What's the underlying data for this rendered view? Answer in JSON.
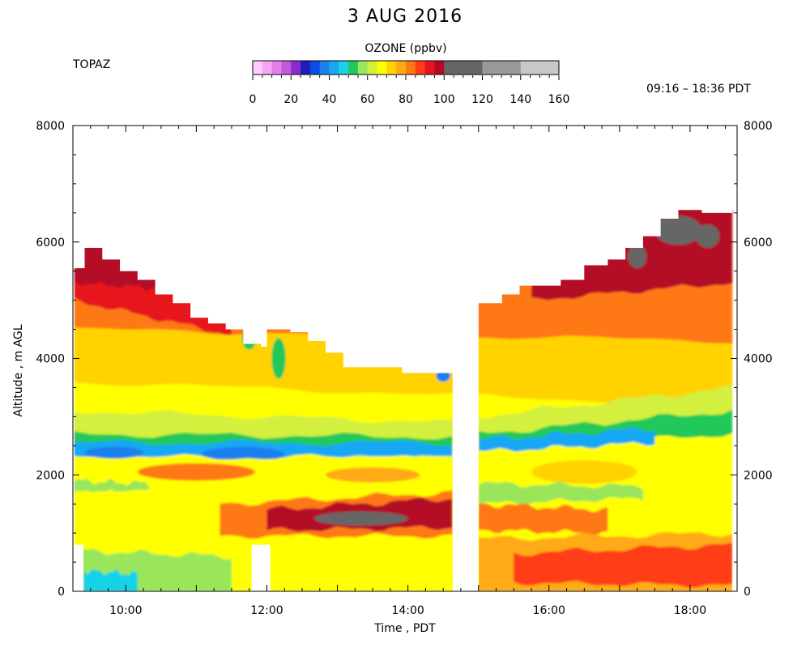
{
  "header": {
    "title": "3 AUG 2016",
    "station": "TOPAZ",
    "time_range": "09:16 – 18:36 PDT"
  },
  "colorbar": {
    "title": "OZONE (ppbv)",
    "tick_labels": [
      "0",
      "20",
      "40",
      "60",
      "80",
      "100",
      "120",
      "140",
      "160"
    ],
    "bins": [
      {
        "min": 0,
        "max": 5,
        "color": "#ffccff"
      },
      {
        "min": 5,
        "max": 10,
        "color": "#f5a6f5"
      },
      {
        "min": 10,
        "max": 15,
        "color": "#e27ee8"
      },
      {
        "min": 15,
        "max": 20,
        "color": "#c25ad8"
      },
      {
        "min": 20,
        "max": 25,
        "color": "#8a2bd2"
      },
      {
        "min": 25,
        "max": 30,
        "color": "#1f1fb8"
      },
      {
        "min": 30,
        "max": 35,
        "color": "#0a4ce6"
      },
      {
        "min": 35,
        "max": 40,
        "color": "#1c7ff0"
      },
      {
        "min": 40,
        "max": 45,
        "color": "#14a8f5"
      },
      {
        "min": 45,
        "max": 50,
        "color": "#18d2e6"
      },
      {
        "min": 50,
        "max": 55,
        "color": "#22c85a"
      },
      {
        "min": 55,
        "max": 60,
        "color": "#9ae65a"
      },
      {
        "min": 60,
        "max": 65,
        "color": "#d2f03c"
      },
      {
        "min": 65,
        "max": 70,
        "color": "#ffff00"
      },
      {
        "min": 70,
        "max": 75,
        "color": "#ffd200"
      },
      {
        "min": 75,
        "max": 80,
        "color": "#ffaa14"
      },
      {
        "min": 80,
        "max": 85,
        "color": "#ff7814"
      },
      {
        "min": 85,
        "max": 90,
        "color": "#ff3c14"
      },
      {
        "min": 90,
        "max": 95,
        "color": "#e6141e"
      },
      {
        "min": 95,
        "max": 100,
        "color": "#b40a28"
      },
      {
        "min": 100,
        "max": 120,
        "color": "#666666"
      },
      {
        "min": 120,
        "max": 140,
        "color": "#999999"
      },
      {
        "min": 140,
        "max": 160,
        "color": "#c8c8c8"
      }
    ]
  },
  "chart_data": {
    "type": "heatmap",
    "title": "3 AUG 2016",
    "xlabel": "Time , PDT",
    "ylabel": "Altitude , m AGL",
    "xlim": [
      "09:15",
      "18:40"
    ],
    "ylim": [
      0,
      8000
    ],
    "x_ticks": [
      "10:00",
      "12:00",
      "14:00",
      "16:00",
      "18:00"
    ],
    "y_ticks_left": [
      "0",
      "2000",
      "4000",
      "6000",
      "8000"
    ],
    "y_ticks_right": [
      "0",
      "2000",
      "4000",
      "6000",
      "8000"
    ],
    "grid": false,
    "data_top_m": [
      {
        "time": "09:16",
        "top": 5550
      },
      {
        "time": "09:25",
        "top": 5900
      },
      {
        "time": "09:40",
        "top": 5700
      },
      {
        "time": "09:55",
        "top": 5500
      },
      {
        "time": "10:10",
        "top": 5350
      },
      {
        "time": "10:25",
        "top": 5100
      },
      {
        "time": "10:40",
        "top": 4950
      },
      {
        "time": "10:55",
        "top": 4700
      },
      {
        "time": "11:10",
        "top": 4600
      },
      {
        "time": "11:25",
        "top": 4500
      },
      {
        "time": "11:40",
        "top": 4250
      },
      {
        "time": "11:55",
        "top": 4200
      },
      {
        "time": "12:00",
        "top": 4500
      },
      {
        "time": "12:20",
        "top": 4450
      },
      {
        "time": "12:35",
        "top": 4300
      },
      {
        "time": "12:50",
        "top": 4100
      },
      {
        "time": "13:05",
        "top": 3850
      },
      {
        "time": "13:30",
        "top": 3850
      },
      {
        "time": "13:55",
        "top": 3750
      },
      {
        "time": "14:20",
        "top": 3750
      },
      {
        "time": "14:38",
        "top": 3700
      },
      {
        "time": "15:00",
        "top": 4950
      },
      {
        "time": "15:20",
        "top": 5100
      },
      {
        "time": "15:35",
        "top": 5250
      },
      {
        "time": "15:55",
        "top": 5250
      },
      {
        "time": "16:10",
        "top": 5350
      },
      {
        "time": "16:30",
        "top": 5600
      },
      {
        "time": "16:50",
        "top": 5700
      },
      {
        "time": "17:05",
        "top": 5900
      },
      {
        "time": "17:20",
        "top": 6100
      },
      {
        "time": "17:35",
        "top": 6400
      },
      {
        "time": "17:50",
        "top": 6550
      },
      {
        "time": "18:10",
        "top": 6500
      },
      {
        "time": "18:36",
        "top": 6550
      }
    ],
    "gaps": [
      {
        "from": "14:38",
        "to": "14:48",
        "altitude_range_m": [
          300,
          3700
        ]
      },
      {
        "from": "14:48",
        "to": "15:00",
        "altitude_range_m": [
          0,
          4950
        ]
      },
      {
        "from": "11:47",
        "to": "12:03",
        "altitude_range_m": [
          0,
          800
        ]
      },
      {
        "from": "09:15",
        "to": "09:24",
        "altitude_range_m": [
          0,
          800
        ]
      }
    ],
    "layers": [
      {
        "name": "",
        "shape": "band",
        "start": "09:16",
        "end": "18:36",
        "bottom_m": [
          0,
          0
        ],
        "top_m": [
          8000,
          8000
        ],
        "ozone_ppbv": 67
      },
      {
        "name": "",
        "shape": "band",
        "start": "09:16",
        "end": "18:36",
        "bottom_m": [
          3600,
          3200
        ],
        "top_m": [
          8000,
          8000
        ],
        "ozone_ppbv": 73
      },
      {
        "name": "",
        "shape": "band",
        "start": "09:16",
        "end": "18:36",
        "bottom_m": [
          4500,
          4300
        ],
        "top_m": [
          8000,
          8000
        ],
        "ozone_ppbv": 82
      },
      {
        "name": "",
        "shape": "band",
        "start": "09:16",
        "end": "11:30",
        "bottom_m": [
          5000,
          4400
        ],
        "top_m": [
          8000,
          8000
        ],
        "ozone_ppbv": 90
      },
      {
        "name": "",
        "shape": "band",
        "start": "15:45",
        "end": "18:36",
        "bottom_m": [
          5000,
          5300
        ],
        "top_m": [
          8000,
          8000
        ],
        "ozone_ppbv": 96
      },
      {
        "name": "",
        "shape": "band",
        "start": "09:16",
        "end": "10:30",
        "bottom_m": [
          5300,
          5200
        ],
        "top_m": [
          8000,
          8000
        ],
        "ozone_ppbv": 97
      },
      {
        "name": "",
        "shape": "blob",
        "time": "17:50",
        "alt_m": 6200,
        "dt_min": 20,
        "dz_m": 250,
        "ozone_ppbv": 108
      },
      {
        "name": "",
        "shape": "blob",
        "time": "18:15",
        "alt_m": 6100,
        "dt_min": 10,
        "dz_m": 200,
        "ozone_ppbv": 108
      },
      {
        "name": "",
        "shape": "blob",
        "time": "17:15",
        "alt_m": 5750,
        "dt_min": 8,
        "dz_m": 200,
        "ozone_ppbv": 108
      },
      {
        "name": "",
        "shape": "band",
        "start": "09:16",
        "end": "14:38",
        "bottom_m": [
          2600,
          2550
        ],
        "top_m": [
          3100,
          2900
        ],
        "ozone_ppbv": 60
      },
      {
        "name": "",
        "shape": "band",
        "start": "15:00",
        "end": "18:36",
        "bottom_m": [
          2600,
          2900
        ],
        "top_m": [
          3000,
          3500
        ],
        "ozone_ppbv": 60
      },
      {
        "name": "",
        "shape": "band",
        "start": "09:16",
        "end": "14:38",
        "bottom_m": [
          2450,
          2450
        ],
        "top_m": [
          2700,
          2650
        ],
        "ozone_ppbv": 52
      },
      {
        "name": "",
        "shape": "band",
        "start": "15:00",
        "end": "18:36",
        "bottom_m": [
          2450,
          2700
        ],
        "top_m": [
          2700,
          3100
        ],
        "ozone_ppbv": 52
      },
      {
        "name": "",
        "shape": "band",
        "start": "09:16",
        "end": "14:38",
        "bottom_m": [
          2300,
          2300
        ],
        "top_m": [
          2550,
          2550
        ],
        "ozone_ppbv": 44
      },
      {
        "name": "",
        "shape": "band",
        "start": "15:00",
        "end": "17:30",
        "bottom_m": [
          2400,
          2550
        ],
        "top_m": [
          2600,
          2800
        ],
        "ozone_ppbv": 44
      },
      {
        "name": "",
        "shape": "blob",
        "time": "11:40",
        "alt_m": 2350,
        "dt_min": 35,
        "dz_m": 130,
        "ozone_ppbv": 36
      },
      {
        "name": "",
        "shape": "blob",
        "time": "09:50",
        "alt_m": 2380,
        "dt_min": 25,
        "dz_m": 100,
        "ozone_ppbv": 36
      },
      {
        "name": "",
        "shape": "band",
        "start": "09:16",
        "end": "14:38",
        "bottom_m": [
          1800,
          1800
        ],
        "top_m": [
          2300,
          2300
        ],
        "ozone_ppbv": 66
      },
      {
        "name": "",
        "shape": "blob",
        "time": "11:00",
        "alt_m": 2050,
        "dt_min": 50,
        "dz_m": 150,
        "ozone_ppbv": 80
      },
      {
        "name": "",
        "shape": "blob",
        "time": "13:30",
        "alt_m": 2000,
        "dt_min": 40,
        "dz_m": 130,
        "ozone_ppbv": 78
      },
      {
        "name": "",
        "shape": "blob",
        "time": "16:30",
        "alt_m": 2050,
        "dt_min": 45,
        "dz_m": 200,
        "ozone_ppbv": 72
      },
      {
        "name": "",
        "shape": "band",
        "start": "09:16",
        "end": "10:20",
        "bottom_m": [
          1700,
          1700
        ],
        "top_m": [
          1900,
          1850
        ],
        "ozone_ppbv": 56
      },
      {
        "name": "",
        "shape": "band",
        "start": "15:00",
        "end": "17:20",
        "bottom_m": [
          1500,
          1600
        ],
        "top_m": [
          1850,
          1800
        ],
        "ozone_ppbv": 56
      },
      {
        "name": "",
        "shape": "band",
        "start": "09:16",
        "end": "14:38",
        "bottom_m": [
          700,
          700
        ],
        "top_m": [
          1700,
          1700
        ],
        "ozone_ppbv": 68
      },
      {
        "name": "",
        "shape": "band",
        "start": "11:20",
        "end": "14:38",
        "bottom_m": [
          950,
          950
        ],
        "top_m": [
          1500,
          1700
        ],
        "ozone_ppbv": 84
      },
      {
        "name": "",
        "shape": "band",
        "start": "12:00",
        "end": "14:38",
        "bottom_m": [
          1050,
          1100
        ],
        "top_m": [
          1400,
          1600
        ],
        "ozone_ppbv": 95
      },
      {
        "name": "",
        "shape": "blob",
        "time": "13:20",
        "alt_m": 1250,
        "dt_min": 40,
        "dz_m": 120,
        "ozone_ppbv": 108
      },
      {
        "name": "",
        "shape": "band",
        "start": "15:00",
        "end": "16:50",
        "bottom_m": [
          1050,
          1000
        ],
        "top_m": [
          1500,
          1400
        ],
        "ozone_ppbv": 84
      },
      {
        "name": "",
        "shape": "band",
        "start": "15:00",
        "end": "18:36",
        "bottom_m": [
          0,
          0
        ],
        "top_m": [
          900,
          1000
        ],
        "ozone_ppbv": 76
      },
      {
        "name": "",
        "shape": "band",
        "start": "15:30",
        "end": "18:36",
        "bottom_m": [
          150,
          100
        ],
        "top_m": [
          650,
          800
        ],
        "ozone_ppbv": 85
      },
      {
        "name": "",
        "shape": "band",
        "start": "09:16",
        "end": "11:30",
        "bottom_m": [
          0,
          0
        ],
        "top_m": [
          700,
          600
        ],
        "ozone_ppbv": 57
      },
      {
        "name": "",
        "shape": "band",
        "start": "09:24",
        "end": "10:10",
        "bottom_m": [
          0,
          0
        ],
        "top_m": [
          350,
          300
        ],
        "ozone_ppbv": 48
      },
      {
        "name": "",
        "shape": "blob",
        "time": "11:05",
        "alt_m": 200,
        "dt_min": 25,
        "dz_m": 180,
        "ozone_ppbv": 57
      },
      {
        "name": "",
        "shape": "blob",
        "time": "12:10",
        "alt_m": 4000,
        "dt_min": 6,
        "dz_m": 350,
        "ozone_ppbv": 52
      },
      {
        "name": "",
        "shape": "blob",
        "time": "11:45",
        "alt_m": 4350,
        "dt_min": 6,
        "dz_m": 200,
        "ozone_ppbv": 52
      },
      {
        "name": "",
        "shape": "blob",
        "time": "14:30",
        "alt_m": 3700,
        "dt_min": 6,
        "dz_m": 100,
        "ozone_ppbv": 36
      }
    ]
  }
}
